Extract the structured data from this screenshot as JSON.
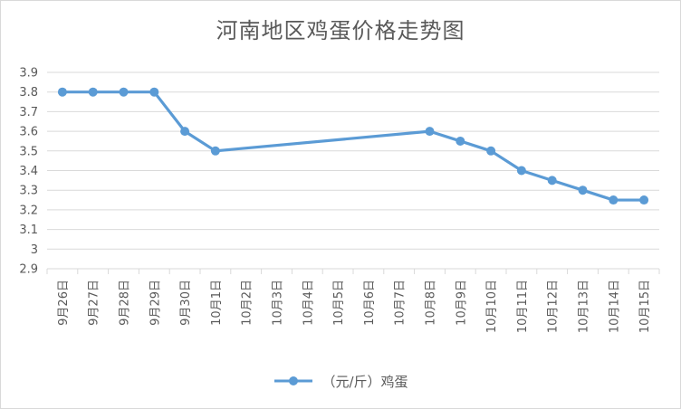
{
  "chart_data": {
    "type": "line",
    "title": "河南地区鸡蛋价格走势图",
    "categories": [
      "9月26日",
      "9月27日",
      "9月28日",
      "9月29日",
      "9月30日",
      "10月1日",
      "10月2日",
      "10月3日",
      "10月4日",
      "10月5日",
      "10月6日",
      "10月7日",
      "10月8日",
      "10月9日",
      "10月10日",
      "10月11日",
      "10月12日",
      "10月13日",
      "10月14日",
      "10月15日"
    ],
    "series": [
      {
        "name": "（元/斤）鸡蛋",
        "color": "#5b9bd5",
        "values": [
          3.8,
          3.8,
          3.8,
          3.8,
          3.6,
          3.5,
          null,
          null,
          null,
          null,
          null,
          null,
          3.6,
          3.55,
          3.5,
          3.4,
          3.35,
          3.3,
          3.25,
          3.25
        ]
      }
    ],
    "yticks": [
      "2.9",
      "3",
      "3.1",
      "3.2",
      "3.3",
      "3.4",
      "3.5",
      "3.6",
      "3.7",
      "3.8",
      "3.9"
    ],
    "ylim": [
      2.9,
      3.9
    ],
    "grid": true,
    "legend": "bottom"
  }
}
